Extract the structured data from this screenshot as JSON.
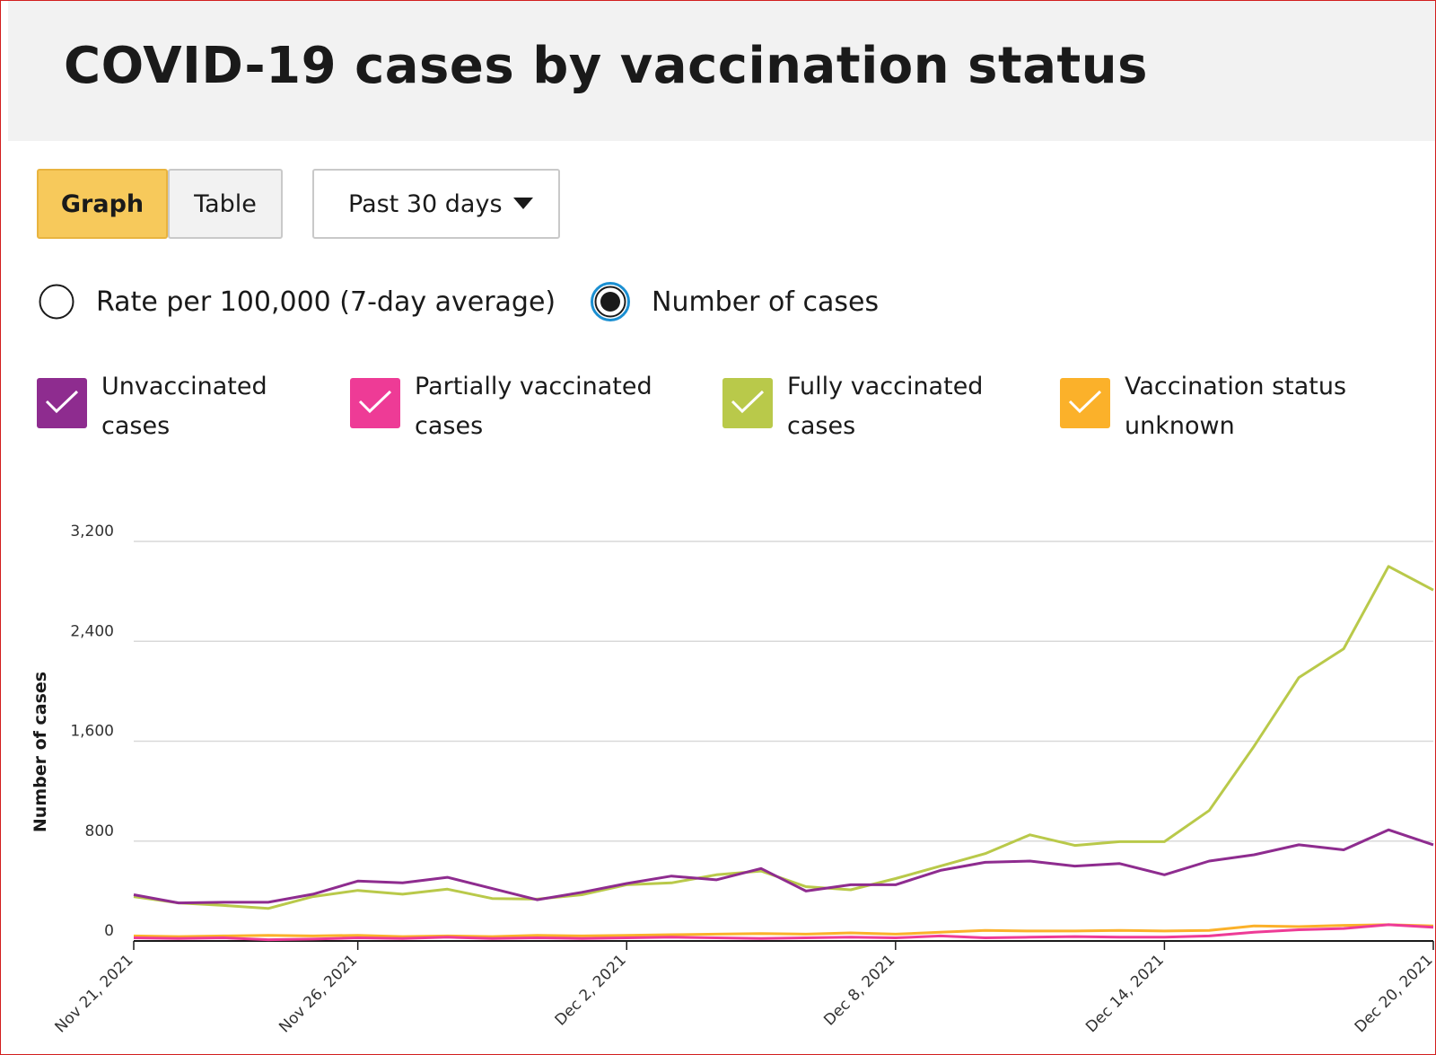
{
  "header": {
    "title": "COVID-19 cases by vaccination status"
  },
  "view_toggle": {
    "graph_label": "Graph",
    "table_label": "Table",
    "selected": "Graph"
  },
  "range_select": {
    "value": "Past 30 days",
    "icon": "caret-down-icon"
  },
  "measure": {
    "rate_label": "Rate per 100,000 (7-day average)",
    "count_label": "Number of cases",
    "selected": "Number of cases"
  },
  "legend": [
    {
      "line1": "Unvaccinated",
      "line2": "cases",
      "color": "#8e2c8f",
      "checked": true
    },
    {
      "line1": "Partially vaccinated",
      "line2": "cases",
      "color": "#ee3b96",
      "checked": true
    },
    {
      "line1": "Fully vaccinated",
      "line2": "cases",
      "color": "#b9c94a",
      "checked": true
    },
    {
      "line1": "Vaccination status",
      "line2": "unknown",
      "color": "#fbb12a",
      "checked": true
    }
  ],
  "chart_data": {
    "type": "line",
    "ylabel": "Number of cases",
    "ylim": [
      0,
      3200
    ],
    "yticks": [
      "0",
      "800",
      "1,600",
      "2,400",
      "3,200"
    ],
    "ytick_values": [
      0,
      800,
      1600,
      2400,
      3200
    ],
    "xtick_labels": [
      "Nov 21, 2021",
      "Nov 26, 2021",
      "Dec 2, 2021",
      "Dec 8, 2021",
      "Dec 14, 2021",
      "Dec 20, 2021"
    ],
    "xtick_index": [
      0,
      5,
      11,
      17,
      23,
      29
    ],
    "grid": true,
    "x": [
      "Nov 21, 2021",
      "Nov 22, 2021",
      "Nov 23, 2021",
      "Nov 24, 2021",
      "Nov 25, 2021",
      "Nov 26, 2021",
      "Nov 27, 2021",
      "Nov 28, 2021",
      "Nov 29, 2021",
      "Nov 30, 2021",
      "Dec 1, 2021",
      "Dec 2, 2021",
      "Dec 3, 2021",
      "Dec 4, 2021",
      "Dec 5, 2021",
      "Dec 6, 2021",
      "Dec 7, 2021",
      "Dec 8, 2021",
      "Dec 9, 2021",
      "Dec 10, 2021",
      "Dec 11, 2021",
      "Dec 12, 2021",
      "Dec 13, 2021",
      "Dec 14, 2021",
      "Dec 15, 2021",
      "Dec 16, 2021",
      "Dec 17, 2021",
      "Dec 18, 2021",
      "Dec 19, 2021",
      "Dec 20, 2021"
    ],
    "series": [
      {
        "name": "Unvaccinated cases",
        "color": "#8e2c8f",
        "values": [
          370,
          305,
          310,
          310,
          375,
          480,
          465,
          510,
          420,
          330,
          390,
          460,
          520,
          490,
          580,
          400,
          450,
          450,
          565,
          630,
          640,
          600,
          620,
          530,
          640,
          690,
          770,
          730,
          890,
          770
        ]
      },
      {
        "name": "Partially vaccinated cases",
        "color": "#ee3b96",
        "values": [
          25,
          20,
          25,
          10,
          15,
          25,
          20,
          30,
          20,
          25,
          20,
          25,
          30,
          25,
          20,
          25,
          30,
          25,
          40,
          25,
          30,
          35,
          30,
          30,
          40,
          70,
          90,
          100,
          130,
          110
        ]
      },
      {
        "name": "Fully vaccinated cases",
        "color": "#b9c94a",
        "values": [
          355,
          305,
          285,
          260,
          355,
          405,
          375,
          415,
          340,
          335,
          370,
          450,
          465,
          530,
          560,
          435,
          410,
          500,
          600,
          700,
          850,
          765,
          795,
          795,
          1045,
          1560,
          2110,
          2340,
          3000,
          2810
        ]
      },
      {
        "name": "Vaccination status unknown",
        "color": "#fbb12a",
        "values": [
          40,
          35,
          40,
          45,
          40,
          45,
          35,
          40,
          35,
          45,
          40,
          45,
          50,
          55,
          60,
          55,
          65,
          55,
          70,
          85,
          80,
          80,
          85,
          80,
          85,
          120,
          115,
          125,
          130,
          120
        ]
      }
    ]
  }
}
